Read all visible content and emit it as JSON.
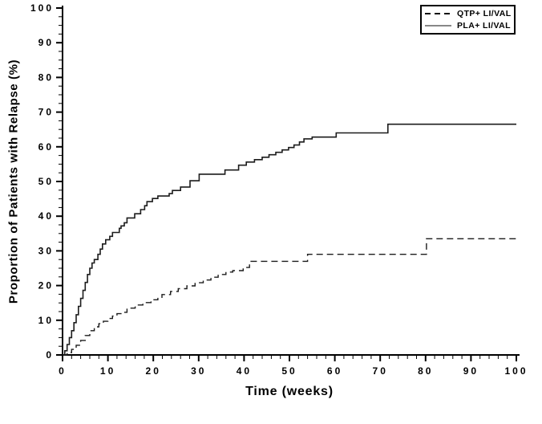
{
  "colors": {
    "background": "#ffffff",
    "axis": "#000000",
    "text": "#000000",
    "qtp_line": "#1c1c1c",
    "pla_line": "#1c1c1c"
  },
  "chart_data": {
    "type": "line",
    "line_style": "step-after",
    "title": "",
    "xlabel": "Time (weeks)",
    "ylabel": "Proportion of Patients with Relapse (%)",
    "xlim": [
      0,
      100
    ],
    "ylim": [
      0,
      100
    ],
    "x_ticks": [
      0,
      10,
      20,
      30,
      40,
      50,
      60,
      70,
      80,
      90,
      100
    ],
    "y_ticks": [
      0,
      10,
      20,
      30,
      40,
      50,
      60,
      70,
      80,
      90,
      100
    ],
    "x_minor_tick_step": 2,
    "y_minor_tick_step": 2.5,
    "grid": false,
    "legend_position": "top-right",
    "series": [
      {
        "name": "QTP+ LI/VAL",
        "line": "dashed",
        "color": "#1c1c1c",
        "points": [
          [
            0,
            0
          ],
          [
            1,
            0.7
          ],
          [
            2,
            1.6
          ],
          [
            3,
            2.8
          ],
          [
            4,
            4.2
          ],
          [
            5,
            5.6
          ],
          [
            6,
            7
          ],
          [
            7,
            8.1
          ],
          [
            8,
            9
          ],
          [
            9,
            9.7
          ],
          [
            10,
            10.5
          ],
          [
            11,
            11.2
          ],
          [
            12,
            11.9
          ],
          [
            13.2,
            12.3
          ],
          [
            14.2,
            13.5
          ],
          [
            16,
            14.4
          ],
          [
            17.7,
            15.1
          ],
          [
            19.5,
            15.9
          ],
          [
            21,
            16.6
          ],
          [
            21.9,
            17.4
          ],
          [
            23.8,
            18.3
          ],
          [
            25.5,
            19.1
          ],
          [
            27.4,
            19.9
          ],
          [
            29.2,
            20.8
          ],
          [
            31,
            21.6
          ],
          [
            32.7,
            22.4
          ],
          [
            34.3,
            23.2
          ],
          [
            36,
            23.9
          ],
          [
            37.5,
            24.3
          ],
          [
            39.8,
            25.2
          ],
          [
            41.2,
            27
          ],
          [
            54,
            29
          ],
          [
            80.2,
            33.5
          ],
          [
            100,
            33.5
          ]
        ]
      },
      {
        "name": "PLA+ LI/VAL",
        "line": "solid",
        "color": "#1c1c1c",
        "points": [
          [
            0,
            0
          ],
          [
            0.5,
            1.2
          ],
          [
            1,
            3
          ],
          [
            1.5,
            5
          ],
          [
            2,
            7
          ],
          [
            2.5,
            9.3
          ],
          [
            3,
            11.6
          ],
          [
            3.5,
            14
          ],
          [
            4,
            16.3
          ],
          [
            4.5,
            18.6
          ],
          [
            5,
            20.9
          ],
          [
            5.5,
            23.2
          ],
          [
            6,
            25
          ],
          [
            6.5,
            26.5
          ],
          [
            7,
            27.5
          ],
          [
            7.8,
            29
          ],
          [
            8.3,
            30.5
          ],
          [
            8.8,
            32
          ],
          [
            9.5,
            33.2
          ],
          [
            10.4,
            34.2
          ],
          [
            11,
            35.3
          ],
          [
            12.5,
            36.5
          ],
          [
            12.9,
            37.2
          ],
          [
            13.6,
            38.1
          ],
          [
            14.2,
            39.5
          ],
          [
            15.9,
            40.7
          ],
          [
            17.2,
            41.9
          ],
          [
            18.1,
            43
          ],
          [
            18.6,
            44.2
          ],
          [
            19.8,
            45.1
          ],
          [
            21,
            45.8
          ],
          [
            23.5,
            46.5
          ],
          [
            24.2,
            47.4
          ],
          [
            26,
            48.4
          ],
          [
            28.1,
            50.2
          ],
          [
            30.1,
            52.1
          ],
          [
            35.8,
            53.3
          ],
          [
            38.8,
            54.7
          ],
          [
            40.5,
            55.6
          ],
          [
            42.3,
            56.3
          ],
          [
            44,
            57
          ],
          [
            45.5,
            57.7
          ],
          [
            47,
            58.4
          ],
          [
            48.4,
            59.1
          ],
          [
            49.8,
            59.8
          ],
          [
            51,
            60.5
          ],
          [
            52.2,
            61.4
          ],
          [
            53.2,
            62.3
          ],
          [
            55,
            62.8
          ],
          [
            60.3,
            64
          ],
          [
            71.7,
            66.5
          ],
          [
            100,
            66.5
          ]
        ]
      }
    ]
  }
}
